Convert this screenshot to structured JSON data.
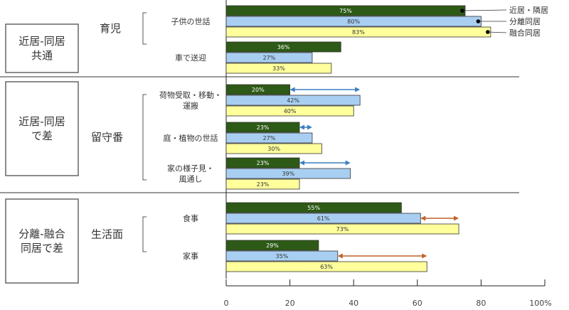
{
  "chart_data": {
    "type": "bar",
    "orientation": "horizontal",
    "xlim": [
      0,
      100
    ],
    "ticks": [
      "0",
      "20",
      "40",
      "60",
      "80",
      "100%"
    ],
    "series": [
      {
        "name": "近居・隣居",
        "color": "#2d5a16"
      },
      {
        "name": "分離同居",
        "color": "#a8cff2"
      },
      {
        "name": "融合同居",
        "color": "#ffff9c"
      }
    ],
    "groups": [
      {
        "label_lines": [
          "近居-同居",
          "共通"
        ],
        "sublabel": "育児",
        "categories": [
          {
            "label_lines": [
              "子供の世話"
            ],
            "values": [
              75,
              80,
              83
            ],
            "arrow": null
          },
          {
            "label_lines": [
              "車で送迎"
            ],
            "values": [
              36,
              27,
              33
            ],
            "arrow": null
          }
        ]
      },
      {
        "label_lines": [
          "近居-同居",
          "で差"
        ],
        "sublabel": "留守番",
        "categories": [
          {
            "label_lines": [
              "荷物受取・移動・",
              "運搬"
            ],
            "values": [
              20,
              42,
              40
            ],
            "arrow": {
              "from": 20,
              "to": 42,
              "row": 0,
              "color": "#3a7fc1"
            }
          },
          {
            "label_lines": [
              "庭・植物の世話"
            ],
            "values": [
              23,
              27,
              30
            ],
            "arrow": {
              "from": 23,
              "to": 27,
              "row": 0,
              "color": "#3a7fc1"
            }
          },
          {
            "label_lines": [
              "家の様子見・",
              "風通し"
            ],
            "values": [
              23,
              39,
              23
            ],
            "arrow": {
              "from": 23,
              "to": 39,
              "row": 0,
              "color": "#3a7fc1"
            }
          }
        ]
      },
      {
        "label_lines": [
          "分離-融合",
          "同居で差"
        ],
        "sublabel": "生活面",
        "categories": [
          {
            "label_lines": [
              "食事"
            ],
            "values": [
              55,
              61,
              73
            ],
            "arrow": {
              "from": 61,
              "to": 73,
              "row": 1,
              "color": "#c0632a"
            }
          },
          {
            "label_lines": [
              "家事"
            ],
            "values": [
              29,
              35,
              63
            ],
            "arrow": {
              "from": 35,
              "to": 63,
              "row": 1,
              "color": "#c0632a"
            }
          }
        ]
      }
    ],
    "value_labels": [
      [
        "75%",
        "80%",
        "83%"
      ],
      [
        "36%",
        "27%",
        "33%"
      ],
      [
        "20%",
        "42%",
        "40%"
      ],
      [
        "23%",
        "27%",
        "30%"
      ],
      [
        "23%",
        "39%",
        "23%"
      ],
      [
        "55%",
        "61%",
        "73%"
      ],
      [
        "29%",
        "35%",
        "63%"
      ]
    ]
  }
}
